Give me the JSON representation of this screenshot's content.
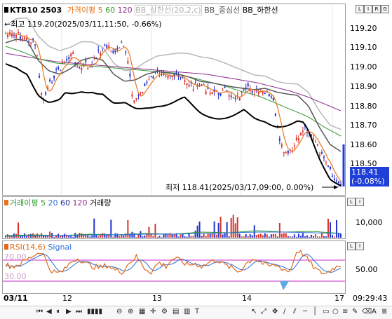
{
  "main_legend": {
    "symbol": "KTB10 2503",
    "ma_label": "가격이평 5",
    "ma60": "60",
    "ma120": "120",
    "bb_upper": "BB_상한선(20,2,c)",
    "bb_mid": "BB_중심선",
    "bb_lower": "BB_하한선"
  },
  "annotations": {
    "high": "←최고 119.20(2025/03/11,11:50, -0.66%)",
    "low": "최저 118.41(2025/03/17,09:00, 0.00%)"
  },
  "price_axis": [
    "119.20",
    "119.10",
    "119.00",
    "118.90",
    "118.80",
    "118.70",
    "118.60",
    "118.50"
  ],
  "current_price": {
    "price": "118.41",
    "change": "(-0.08%)"
  },
  "volume_legend": {
    "label": "거래이평 5",
    "p20": "20",
    "p60": "60",
    "p120": "120",
    "vol": "거래량"
  },
  "volume_axis": [
    "10,000"
  ],
  "rsi_legend": {
    "rsi": "RSI(14,6)",
    "signal": "Signal"
  },
  "rsi_levels": {
    "upper": "70.00",
    "lower": "30.00",
    "mid": "50.00"
  },
  "x_axis": [
    "03/11",
    "12",
    "13",
    "14",
    "17"
  ],
  "time": "09:29:43",
  "scale_buttons": {
    "main": [
      "L",
      "I",
      "R",
      "G"
    ],
    "volume": [
      "L",
      "I"
    ],
    "rsi": [
      "L",
      "I"
    ]
  },
  "colors": {
    "ma5": "#e8741e",
    "ma60": "#2e9a2e",
    "ma120": "#8e2a8e",
    "bb_upper": "#b8b8b8",
    "bb_mid": "#555555",
    "bb_lower": "#000000",
    "up": "#d9322b",
    "down": "#2233cc",
    "rsi": "#e06a1a",
    "signal": "#2b6fd6",
    "level": "#c82bc8",
    "cur_price_bg": "#1f3fd8"
  }
}
